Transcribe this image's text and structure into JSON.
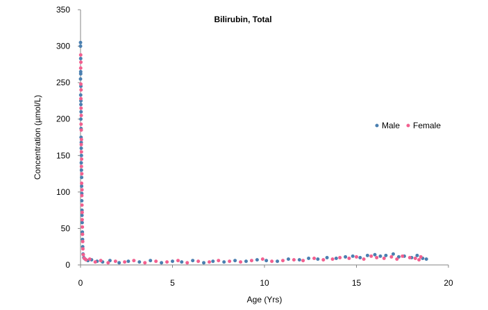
{
  "chart_data": {
    "type": "scatter",
    "title": "Bilirubin, Total",
    "xlabel": "Age (Yrs)",
    "ylabel": "Concentration (µmol/L)",
    "xlim": [
      0,
      20
    ],
    "ylim": [
      0,
      350
    ],
    "x_ticks": [
      "0",
      "5",
      "10",
      "15",
      "20"
    ],
    "y_ticks": [
      "0",
      "50",
      "100",
      "150",
      "200",
      "250",
      "300",
      "350"
    ],
    "grid": false,
    "legend_position": "right",
    "series": [
      {
        "name": "Male",
        "color": "#4a7fb0",
        "points": [
          [
            0.0,
            305
          ],
          [
            0.0,
            300
          ],
          [
            0.01,
            283
          ],
          [
            0.01,
            265
          ],
          [
            0.01,
            262
          ],
          [
            0.0,
            255
          ],
          [
            0.02,
            245
          ],
          [
            0.01,
            233
          ],
          [
            0.02,
            225
          ],
          [
            0.02,
            220
          ],
          [
            0.03,
            210
          ],
          [
            0.02,
            200
          ],
          [
            0.03,
            187
          ],
          [
            0.03,
            175
          ],
          [
            0.04,
            168
          ],
          [
            0.04,
            160
          ],
          [
            0.05,
            150
          ],
          [
            0.04,
            140
          ],
          [
            0.05,
            130
          ],
          [
            0.06,
            120
          ],
          [
            0.06,
            108
          ],
          [
            0.07,
            98
          ],
          [
            0.07,
            88
          ],
          [
            0.08,
            75
          ],
          [
            0.08,
            68
          ],
          [
            0.09,
            58
          ],
          [
            0.1,
            45
          ],
          [
            0.11,
            35
          ],
          [
            0.12,
            25
          ],
          [
            0.14,
            15
          ],
          [
            0.18,
            10
          ],
          [
            0.25,
            8
          ],
          [
            0.4,
            6
          ],
          [
            0.6,
            7
          ],
          [
            0.9,
            5
          ],
          [
            1.2,
            4
          ],
          [
            1.6,
            6
          ],
          [
            2.1,
            3
          ],
          [
            2.6,
            5
          ],
          [
            3.2,
            4
          ],
          [
            3.8,
            6
          ],
          [
            4.4,
            3
          ],
          [
            5.0,
            5
          ],
          [
            5.5,
            4
          ],
          [
            6.1,
            6
          ],
          [
            6.7,
            3
          ],
          [
            7.2,
            5
          ],
          [
            7.8,
            4
          ],
          [
            8.4,
            6
          ],
          [
            9.0,
            5
          ],
          [
            9.6,
            7
          ],
          [
            10.1,
            6
          ],
          [
            10.7,
            5
          ],
          [
            11.3,
            8
          ],
          [
            11.9,
            7
          ],
          [
            12.4,
            9
          ],
          [
            12.9,
            8
          ],
          [
            13.4,
            10
          ],
          [
            13.9,
            9
          ],
          [
            14.4,
            11
          ],
          [
            14.8,
            12
          ],
          [
            15.2,
            10
          ],
          [
            15.6,
            13
          ],
          [
            16.0,
            14
          ],
          [
            16.3,
            12
          ],
          [
            16.6,
            13
          ],
          [
            17.0,
            15
          ],
          [
            17.3,
            11
          ],
          [
            17.6,
            12
          ],
          [
            18.0,
            10
          ],
          [
            18.3,
            13
          ],
          [
            18.6,
            9
          ],
          [
            18.8,
            8
          ]
        ]
      },
      {
        "name": "Female",
        "color": "#f2608f",
        "points": [
          [
            0.01,
            288
          ],
          [
            0.02,
            278
          ],
          [
            0.01,
            270
          ],
          [
            0.02,
            248
          ],
          [
            0.03,
            240
          ],
          [
            0.02,
            228
          ],
          [
            0.03,
            215
          ],
          [
            0.04,
            205
          ],
          [
            0.03,
            193
          ],
          [
            0.04,
            185
          ],
          [
            0.05,
            172
          ],
          [
            0.04,
            165
          ],
          [
            0.05,
            155
          ],
          [
            0.06,
            145
          ],
          [
            0.05,
            135
          ],
          [
            0.07,
            125
          ],
          [
            0.06,
            112
          ],
          [
            0.08,
            103
          ],
          [
            0.07,
            95
          ],
          [
            0.08,
            82
          ],
          [
            0.09,
            72
          ],
          [
            0.09,
            62
          ],
          [
            0.1,
            52
          ],
          [
            0.11,
            42
          ],
          [
            0.12,
            32
          ],
          [
            0.13,
            22
          ],
          [
            0.15,
            14
          ],
          [
            0.2,
            9
          ],
          [
            0.3,
            7
          ],
          [
            0.5,
            8
          ],
          [
            0.8,
            4
          ],
          [
            1.1,
            6
          ],
          [
            1.5,
            3
          ],
          [
            1.9,
            5
          ],
          [
            2.4,
            4
          ],
          [
            2.9,
            6
          ],
          [
            3.5,
            3
          ],
          [
            4.1,
            5
          ],
          [
            4.7,
            4
          ],
          [
            5.3,
            6
          ],
          [
            5.8,
            3
          ],
          [
            6.4,
            5
          ],
          [
            7.0,
            4
          ],
          [
            7.5,
            6
          ],
          [
            8.1,
            5
          ],
          [
            8.7,
            4
          ],
          [
            9.3,
            6
          ],
          [
            9.9,
            8
          ],
          [
            10.4,
            5
          ],
          [
            11.0,
            6
          ],
          [
            11.6,
            7
          ],
          [
            12.1,
            6
          ],
          [
            12.7,
            9
          ],
          [
            13.2,
            7
          ],
          [
            13.7,
            8
          ],
          [
            14.1,
            10
          ],
          [
            14.6,
            9
          ],
          [
            15.0,
            11
          ],
          [
            15.4,
            8
          ],
          [
            15.8,
            12
          ],
          [
            16.1,
            10
          ],
          [
            16.5,
            9
          ],
          [
            16.9,
            11
          ],
          [
            17.2,
            8
          ],
          [
            17.5,
            12
          ],
          [
            17.9,
            10
          ],
          [
            18.2,
            9
          ],
          [
            18.5,
            11
          ],
          [
            18.4,
            7
          ]
        ]
      }
    ]
  }
}
